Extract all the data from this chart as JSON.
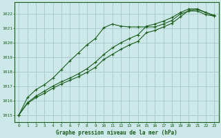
{
  "title": "Graphe pression niveau de la mer (hPa)",
  "bg_color": "#cce8e8",
  "grid_color": "#aacccc",
  "line_color": "#1a5c1a",
  "spine_color": "#1a5c1a",
  "xlim": [
    -0.5,
    23.5
  ],
  "ylim": [
    1014.5,
    1022.8
  ],
  "xticks": [
    0,
    1,
    2,
    3,
    4,
    5,
    6,
    7,
    8,
    9,
    10,
    11,
    12,
    13,
    14,
    15,
    16,
    17,
    18,
    19,
    20,
    21,
    22,
    23
  ],
  "yticks": [
    1015,
    1016,
    1017,
    1018,
    1019,
    1020,
    1021,
    1022
  ],
  "line1_x": [
    0,
    1,
    2,
    3,
    4,
    5,
    6,
    7,
    8,
    9,
    10,
    11,
    12,
    13,
    14,
    15,
    16,
    17,
    18,
    19,
    20,
    21,
    22,
    23
  ],
  "line1_y": [
    1015.0,
    1016.2,
    1016.75,
    1017.1,
    1017.55,
    1018.15,
    1018.75,
    1019.3,
    1019.85,
    1020.3,
    1021.05,
    1021.3,
    1021.15,
    1021.1,
    1021.1,
    1021.1,
    1021.1,
    1021.3,
    1021.55,
    1022.0,
    1022.2,
    1022.2,
    1021.95,
    1021.85
  ],
  "line2_x": [
    0,
    1,
    2,
    3,
    4,
    5,
    6,
    7,
    8,
    9,
    10,
    11,
    12,
    13,
    14,
    15,
    16,
    17,
    18,
    19,
    20,
    21,
    22,
    23
  ],
  "line2_y": [
    1015.0,
    1015.85,
    1016.3,
    1016.65,
    1017.0,
    1017.3,
    1017.55,
    1017.85,
    1018.2,
    1018.65,
    1019.2,
    1019.65,
    1020.0,
    1020.3,
    1020.55,
    1021.15,
    1021.3,
    1021.5,
    1021.75,
    1022.1,
    1022.35,
    1022.35,
    1022.1,
    1021.9
  ],
  "line3_x": [
    0,
    1,
    2,
    3,
    4,
    5,
    6,
    7,
    8,
    9,
    10,
    11,
    12,
    13,
    14,
    15,
    16,
    17,
    18,
    19,
    20,
    21,
    22,
    23
  ],
  "line3_y": [
    1015.0,
    1015.8,
    1016.2,
    1016.5,
    1016.85,
    1017.15,
    1017.4,
    1017.65,
    1017.95,
    1018.3,
    1018.85,
    1019.2,
    1019.55,
    1019.85,
    1020.1,
    1020.7,
    1020.85,
    1021.1,
    1021.35,
    1021.8,
    1022.25,
    1022.3,
    1022.1,
    1021.85
  ]
}
